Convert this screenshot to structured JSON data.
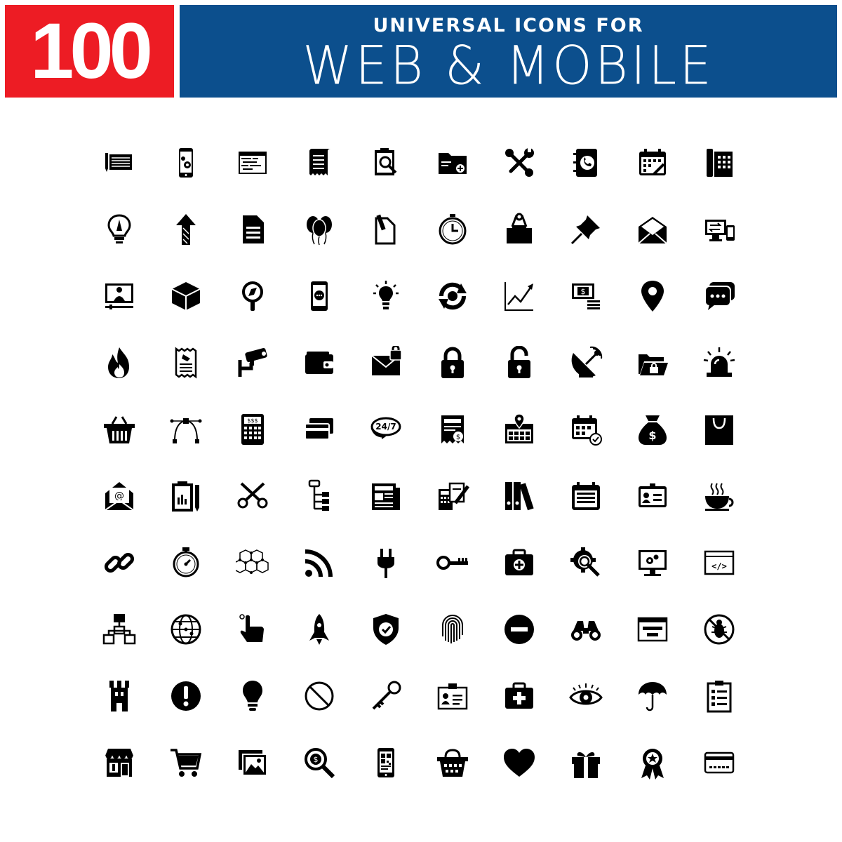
{
  "header": {
    "number": "100",
    "subtitle": "UNIVERSAL ICONS FOR",
    "title": "WEB & MOBILE",
    "number_bg": "#ed1c24",
    "title_bg": "#0c4f8d"
  },
  "icon_text": {
    "calc": "$$$",
    "clock247": "24/7",
    "dollar": "$",
    "code": "</>"
  },
  "icons": [
    [
      "pencil-notepad-icon",
      "mobile-settings-icon",
      "browser-code-icon",
      "receipt-scroll-icon",
      "clipboard-search-icon",
      "folder-add-icon",
      "wrench-screwdriver-icon",
      "contact-book-icon",
      "calendar-edit-icon",
      "fax-machine-icon"
    ],
    [
      "lightbulb-pen-icon",
      "growth-arrows-icon",
      "document-icon",
      "balloons-icon",
      "file-edit-icon",
      "stopwatch-icon",
      "binder-clip-icon",
      "push-pin-icon",
      "open-envelope-icon",
      "devices-sync-icon"
    ],
    [
      "video-conference-icon",
      "box-icon",
      "magnifier-compass-icon",
      "mobile-chat-icon",
      "idea-bulb-icon",
      "sync-icon",
      "line-chart-icon",
      "money-stack-icon",
      "map-pin-icon",
      "chat-bubbles-icon"
    ],
    [
      "fire-icon",
      "receipt-icon",
      "security-camera-icon",
      "wallet-icon",
      "secure-mail-icon",
      "padlock-icon",
      "unlocked-padlock-icon",
      "satellite-dish-icon",
      "locked-folder-icon",
      "alarm-siren-icon"
    ],
    [
      "shopping-basket-icon",
      "bezier-curve-icon",
      "calculator-icon",
      "credit-cards-icon",
      "support-247-icon",
      "invoice-icon",
      "location-calendar-icon",
      "calendar-check-icon",
      "money-bag-icon",
      "shopping-bag-icon"
    ],
    [
      "email-at-icon",
      "clipboard-report-icon",
      "scissors-icon",
      "sitemap-tree-icon",
      "newspaper-icon",
      "calculator-pen-icon",
      "books-binders-icon",
      "calendar-icon",
      "id-card-icon",
      "hot-cup-icon"
    ],
    [
      "chain-link-icon",
      "timer-icon",
      "molecule-network-icon",
      "rss-feed-icon",
      "power-plug-icon",
      "key-icon",
      "toolbox-icon",
      "gear-search-icon",
      "monitor-settings-icon",
      "code-window-icon"
    ],
    [
      "network-hierarchy-icon",
      "globe-icon",
      "pointer-hand-icon",
      "rocket-icon",
      "shield-check-icon",
      "fingerprint-icon",
      "minus-circle-icon",
      "binoculars-icon",
      "login-window-icon",
      "no-bugs-icon"
    ],
    [
      "castle-tower-icon",
      "alert-icon",
      "bulb-icon",
      "prohibited-icon",
      "skeleton-key-icon",
      "id-badge-icon",
      "first-aid-kit-icon",
      "eye-icon",
      "umbrella-icon",
      "checklist-icon"
    ],
    [
      "store-icon",
      "shopping-cart-icon",
      "image-gallery-icon",
      "money-search-icon",
      "qr-mobile-icon",
      "basket-icon",
      "heart-icon",
      "gift-icon",
      "award-ribbon-icon",
      "card-payment-icon"
    ]
  ]
}
